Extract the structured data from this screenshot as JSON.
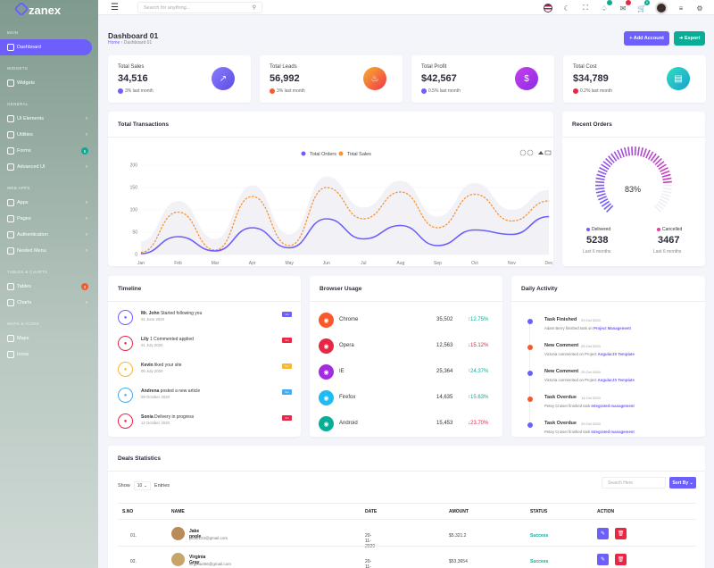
{
  "app": {
    "name": "zanex"
  },
  "sidebar": {
    "sections": [
      {
        "label": "MAIN"
      },
      {
        "label": "WIDGETS"
      },
      {
        "label": "GENERAL"
      },
      {
        "label": "WEB APPS"
      },
      {
        "label": "TABLES & CHARTS"
      },
      {
        "label": "MAPS & ICONS"
      }
    ],
    "items": [
      {
        "label": "Dashboard",
        "icon": "home-icon"
      },
      {
        "label": "Widgets",
        "icon": "grid-icon"
      },
      {
        "label": "UI Elements",
        "icon": "layers-icon"
      },
      {
        "label": "Utilities",
        "icon": "settings-icon"
      },
      {
        "label": "Forms",
        "icon": "file-icon",
        "badge": "6"
      },
      {
        "label": "Advanced UI",
        "icon": "package-icon"
      },
      {
        "label": "Apps",
        "icon": "cpu-icon"
      },
      {
        "label": "Pages",
        "icon": "pages-icon"
      },
      {
        "label": "Authentication",
        "icon": "lock-icon"
      },
      {
        "label": "Nested Menu",
        "icon": "menu-icon"
      },
      {
        "label": "Tables",
        "icon": "clipboard-icon",
        "badge": "3"
      },
      {
        "label": "Charts",
        "icon": "chart-icon"
      },
      {
        "label": "Maps",
        "icon": "map-icon"
      },
      {
        "label": "Icons",
        "icon": "icons-icon"
      }
    ]
  },
  "header": {
    "search_placeholder": "Search for anything...",
    "cart_count": "5"
  },
  "page": {
    "title": "Dashboard 01",
    "breadcrumb_home": "Home",
    "breadcrumb_current": "Dashboard 01",
    "add_account": "+ Add Account",
    "export": "Export"
  },
  "stats": [
    {
      "label": "Total Sales",
      "value": "34,516",
      "change": "3% last month",
      "color": "#6c5ffc"
    },
    {
      "label": "Total Leads",
      "value": "56,992",
      "change": "3% last month",
      "color": "#f7592c"
    },
    {
      "label": "Total Profit",
      "value": "$42,567",
      "change": "0.5% last month",
      "color": "#6c5ffc"
    },
    {
      "label": "Total Cost",
      "value": "$34,789",
      "change": "0.2% last month",
      "color": "#e82646"
    }
  ],
  "transactions": {
    "title": "Total Transactions",
    "legend": [
      "Total Orders",
      "Total Sales"
    ]
  },
  "chart_data": {
    "type": "line",
    "categories": [
      "Jan",
      "Feb",
      "Mar",
      "Apr",
      "May",
      "Jun",
      "Jul",
      "Aug",
      "Sep",
      "Oct",
      "Nov",
      "Dec"
    ],
    "ylim": [
      0,
      200
    ],
    "yticks": [
      "0",
      "50",
      "100",
      "150",
      "200"
    ],
    "series": [
      {
        "name": "Total Orders",
        "color": "#6c5ffc",
        "values": [
          2,
          40,
          8,
          60,
          15,
          80,
          35,
          65,
          20,
          55,
          45,
          85
        ]
      },
      {
        "name": "Total Sales",
        "color": "#f99433",
        "values": [
          5,
          95,
          10,
          130,
          20,
          150,
          80,
          140,
          60,
          135,
          75,
          120
        ]
      }
    ]
  },
  "recent_orders": {
    "title": "Recent Orders",
    "percent": "83%",
    "delivered_label": "Delivered",
    "delivered_value": "5238",
    "delivered_sub": "Last 6 months",
    "cancelled_label": "Cancelled",
    "cancelled_value": "3467",
    "cancelled_sub": "Last 6 months"
  },
  "timeline": {
    "title": "Timeline",
    "items": [
      {
        "name": "Mr. John",
        "text": " Started following you",
        "date": "01 June 2020",
        "badge": "1m",
        "color": "#6c5ffc"
      },
      {
        "name": "Lily",
        "text": " 1 Commented applied",
        "date": "01 July 2020",
        "badge": "3m",
        "color": "#e82646"
      },
      {
        "name": "Kevin",
        "text": " liked your site",
        "date": "05 July 2020",
        "badge": "5m",
        "color": "#f7b731"
      },
      {
        "name": "Andrena",
        "text": " posted a new article",
        "date": "09 October 2020",
        "badge": "5m",
        "color": "#45aaf2"
      },
      {
        "name": "Sonia",
        "text": " Delivery in progress",
        "date": "12 October 2020",
        "badge": "5m",
        "color": "#e82646"
      }
    ]
  },
  "browser": {
    "title": "Browser Usage",
    "items": [
      {
        "name": "Chrome",
        "value": "35,502",
        "pct": "12.75%",
        "up": true,
        "color": "#f7592c",
        "icon": "chrome-icon"
      },
      {
        "name": "Opera",
        "value": "12,563",
        "pct": "15.12%",
        "up": false,
        "color": "#e82646",
        "icon": "opera-icon"
      },
      {
        "name": "IE",
        "value": "25,364",
        "pct": "24.37%",
        "up": true,
        "color": "#a22ce0",
        "icon": "ie-icon"
      },
      {
        "name": "Firefox",
        "value": "14,635",
        "pct": "15.63%",
        "up": true,
        "color": "#1ebcf2",
        "icon": "firefox-icon"
      },
      {
        "name": "Android",
        "value": "15,453",
        "pct": "23.70%",
        "up": false,
        "color": "#09ad95",
        "icon": "android-icon"
      }
    ]
  },
  "activity": {
    "title": "Daily Activity",
    "items": [
      {
        "title": "Task Finished",
        "date": "29 Oct 2020",
        "text": "Adam Berry finished task on ",
        "link": "Project Management",
        "color": "#6c5ffc"
      },
      {
        "title": "New Comment",
        "date": "25 Oct 2020",
        "text": "Victoria commented on Project ",
        "link": "AngularJS Template",
        "color": "#f7592c"
      },
      {
        "title": "New Comment",
        "date": "25 Oct 2020",
        "text": "Victoria commented on Project ",
        "link": "AngularJS Template",
        "color": "#6c5ffc"
      },
      {
        "title": "Task Overdue",
        "date": "14 Oct 2020",
        "text": "Petey Cruiser finished task ",
        "link": "Integrated management",
        "color": "#f7592c"
      },
      {
        "title": "Task Overdue",
        "date": "29 Oct 2020",
        "text": "Petey Cruiser finished task ",
        "link": "Integrated management",
        "color": "#6c5ffc"
      }
    ]
  },
  "deals": {
    "title": "Deals Statistics",
    "show": "Show",
    "entries_value": "10",
    "entries": "Entries",
    "search_placeholder": "Search Here",
    "sort": "Sort By",
    "columns": [
      "S.NO",
      "NAME",
      "DATE",
      "AMOUNT",
      "STATUS",
      "ACTION"
    ],
    "rows": [
      {
        "no": "01.",
        "name": "Jake poole",
        "email": "jacke123@gmail.com",
        "date": "20-11-2020",
        "amount": "$5.321.2",
        "status": "Success"
      },
      {
        "no": "02.",
        "name": "Virginia Gray",
        "email": "virginia456@gmail.com",
        "date": "20-11-2020",
        "amount": "$53,3654",
        "status": "Success"
      }
    ]
  }
}
